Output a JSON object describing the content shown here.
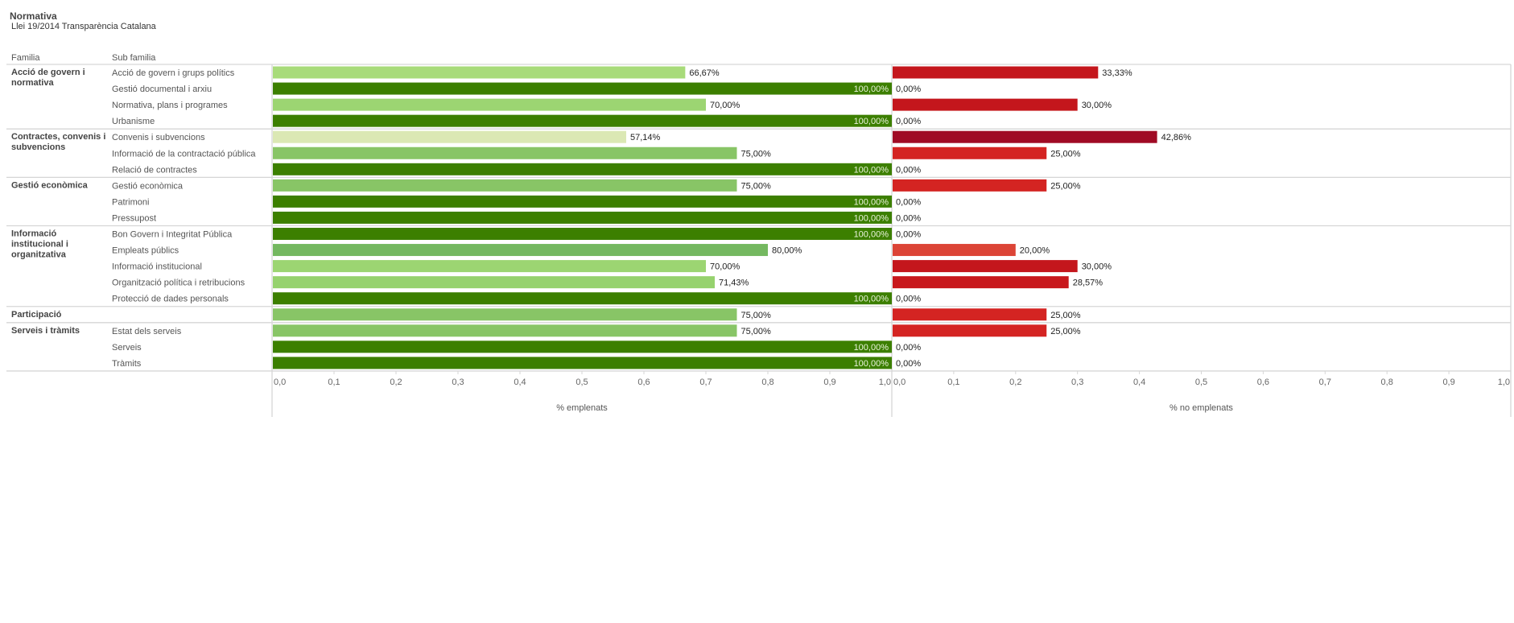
{
  "header": {
    "title": "Normativa",
    "subtitle": "Llei 19/2014 Transparència Catalana",
    "col_family": "Familia",
    "col_subfamily": "Sub familia"
  },
  "chart_data": {
    "type": "bar",
    "orientation": "horizontal",
    "title": "Normativa",
    "subtitle": "Llei 19/2014 Transparència Catalana",
    "row_headers": [
      "Familia",
      "Sub familia"
    ],
    "families": [
      {
        "name": "Acció de govern i normativa",
        "name_lines": [
          "Acció de govern i",
          "normativa"
        ],
        "subfamilies": [
          "Acció de govern i grups polítics",
          "Gestió documental i arxiu",
          "Normativa, plans i programes",
          "Urbanisme"
        ]
      },
      {
        "name": "Contractes, convenis i subvencions",
        "name_lines": [
          "Contractes, convenis i",
          "subvencions"
        ],
        "subfamilies": [
          "Convenis i subvencions",
          "Informació de la contractació pública",
          "Relació de contractes"
        ]
      },
      {
        "name": "Gestió econòmica",
        "name_lines": [
          "Gestió econòmica"
        ],
        "subfamilies": [
          "Gestió econòmica",
          "Patrimoni",
          "Pressupost"
        ]
      },
      {
        "name": "Informació institucional i organitzativa",
        "name_lines": [
          "Informació",
          "institucional i",
          "organitzativa"
        ],
        "subfamilies": [
          "Bon Govern i Integritat Pública",
          "Empleats públics",
          "Informació institucional",
          "Organització política i retribucions",
          "Protecció de dades personals"
        ]
      },
      {
        "name": "Participació",
        "name_lines": [
          "Participació"
        ],
        "subfamilies": [
          ""
        ]
      },
      {
        "name": "Serveis i tràmits",
        "name_lines": [
          "Serveis i tràmits"
        ],
        "subfamilies": [
          "Estat dels serveis",
          "Serveis",
          "Tràmits"
        ]
      }
    ],
    "series": [
      {
        "name": "% emplenats",
        "xlabel": "% emplenats",
        "values": [
          0.6667,
          1.0,
          0.7,
          1.0,
          0.5714,
          0.75,
          1.0,
          0.75,
          1.0,
          1.0,
          1.0,
          0.8,
          0.7,
          0.7143,
          1.0,
          0.75,
          0.75,
          1.0,
          1.0
        ],
        "labels": [
          "66,67%",
          "100,00%",
          "70,00%",
          "100,00%",
          "57,14%",
          "75,00%",
          "100,00%",
          "75,00%",
          "100,00%",
          "100,00%",
          "100,00%",
          "80,00%",
          "70,00%",
          "71,43%",
          "100,00%",
          "75,00%",
          "75,00%",
          "100,00%",
          "100,00%"
        ],
        "colors": [
          "#a8db7a",
          "#3c7f00",
          "#9cd572",
          "#3c7f00",
          "#dbe8b4",
          "#88c566",
          "#3c7f00",
          "#88c566",
          "#3c7f00",
          "#3c7f00",
          "#3c7f00",
          "#74b860",
          "#9cd572",
          "#96d26e",
          "#3c7f00",
          "#88c566",
          "#88c566",
          "#3c7f00",
          "#3c7f00"
        ],
        "xlim": [
          0,
          1.0
        ],
        "ticks": [
          "0,0",
          "0,1",
          "0,2",
          "0,3",
          "0,4",
          "0,5",
          "0,6",
          "0,7",
          "0,8",
          "0,9",
          "1,0"
        ]
      },
      {
        "name": "% no emplenats",
        "xlabel": "% no emplenats",
        "values": [
          0.3333,
          0.0,
          0.3,
          0.0,
          0.4286,
          0.25,
          0.0,
          0.25,
          0.0,
          0.0,
          0.0,
          0.2,
          0.3,
          0.2857,
          0.0,
          0.25,
          0.25,
          0.0,
          0.0
        ],
        "labels": [
          "33,33%",
          "0,00%",
          "30,00%",
          "0,00%",
          "42,86%",
          "25,00%",
          "0,00%",
          "25,00%",
          "0,00%",
          "0,00%",
          "0,00%",
          "20,00%",
          "30,00%",
          "28,57%",
          "0,00%",
          "25,00%",
          "25,00%",
          "0,00%",
          "0,00%"
        ],
        "colors": [
          "#c4161c",
          "#c4161c",
          "#c4161c",
          "#c4161c",
          "#a00a24",
          "#d42422",
          "#c4161c",
          "#d42422",
          "#c4161c",
          "#c4161c",
          "#c4161c",
          "#dc4436",
          "#c4161c",
          "#c8181c",
          "#c4161c",
          "#d42422",
          "#d42422",
          "#c4161c",
          "#c4161c"
        ],
        "xlim": [
          0,
          1.0
        ],
        "ticks": [
          "0,0",
          "0,1",
          "0,2",
          "0,3",
          "0,4",
          "0,5",
          "0,6",
          "0,7",
          "0,8",
          "0,9",
          "1,0"
        ]
      }
    ],
    "grid": false,
    "legend": "none"
  }
}
